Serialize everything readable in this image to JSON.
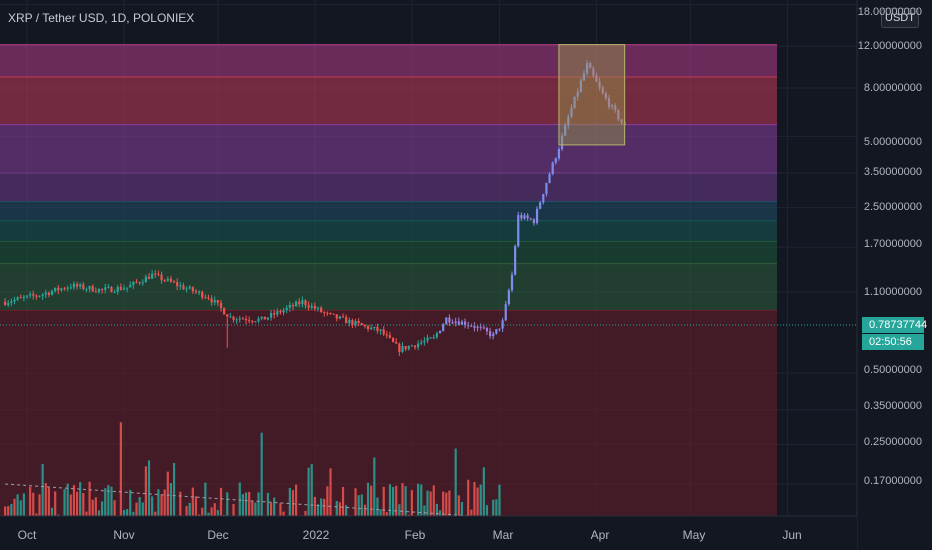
{
  "header": {
    "title": "XRP / Tether USD, 1D, POLONIEX"
  },
  "price_axis": {
    "unit_button": "USDT",
    "top_label": "18.00000000",
    "labels": [
      "12.00000000",
      "8.00000000",
      "5.00000000",
      "3.50000000",
      "2.50000000",
      "1.70000000",
      "1.10000000",
      "0.50000000",
      "0.35000000",
      "0.25000000",
      "0.17000000"
    ],
    "current_price": "0.78737744",
    "countdown": "02:50:56"
  },
  "time_axis": {
    "labels": [
      "Oct",
      "Nov",
      "Dec",
      "2022",
      "Feb",
      "Mar",
      "Apr",
      "May",
      "Jun"
    ]
  },
  "colors": {
    "up": "#26a69a",
    "down": "#ef5350",
    "background": "#131722",
    "price_tag": "#26a69a"
  },
  "chart_data": {
    "type": "candlestick",
    "title": "XRP / Tether USD, 1D, POLONIEX",
    "y_scale": "log",
    "ylim": [
      0.12,
      18.0
    ],
    "x_range": [
      "2021-09-24",
      "2022-06-20"
    ],
    "x_ticks": [
      "Oct",
      "Nov",
      "Dec",
      "2022",
      "Feb",
      "Mar",
      "Apr",
      "May",
      "Jun"
    ],
    "y_ticks": [
      18,
      12,
      8,
      5,
      3.5,
      2.5,
      1.7,
      1.1,
      0.5,
      0.35,
      0.25,
      0.17
    ],
    "last_price": 0.78737744,
    "zones": [
      {
        "from": 8.9,
        "to": 12.2,
        "color": "#b23c8a"
      },
      {
        "from": 5.6,
        "to": 8.9,
        "color": "#c23a5a"
      },
      {
        "from": 3.5,
        "to": 5.6,
        "color": "#8a3fa0"
      },
      {
        "from": 2.65,
        "to": 3.5,
        "color": "#6e3d8a"
      },
      {
        "from": 2.2,
        "to": 2.65,
        "color": "#1f4f66"
      },
      {
        "from": 1.8,
        "to": 2.2,
        "color": "#175a55"
      },
      {
        "from": 1.45,
        "to": 1.8,
        "color": "#1e5a3c"
      },
      {
        "from": 0.92,
        "to": 1.45,
        "color": "#2f5e3e"
      },
      {
        "from": 0.12,
        "to": 0.92,
        "color": "#6b1f2a"
      }
    ],
    "highlight_box": {
      "x_from": "2022-03-20",
      "x_to": "2022-04-10",
      "y_from": 4.6,
      "y_to": 12.2
    },
    "volume_trend": {
      "from": [
        "2021-09-24",
        0.17
      ],
      "to": [
        "2022-04-20",
        0.11
      ]
    },
    "price_path": [
      [
        "2021-09-24",
        1.0
      ],
      [
        "2021-10-05",
        1.07
      ],
      [
        "2021-10-15",
        1.17
      ],
      [
        "2021-10-25",
        1.12
      ],
      [
        "2021-11-02",
        1.15
      ],
      [
        "2021-11-10",
        1.3
      ],
      [
        "2021-11-20",
        1.15
      ],
      [
        "2021-11-28",
        1.05
      ],
      [
        "2021-12-05",
        0.86
      ],
      [
        "2021-12-15",
        0.84
      ],
      [
        "2021-12-28",
        1.0
      ],
      [
        "2022-01-05",
        0.88
      ],
      [
        "2022-01-15",
        0.8
      ],
      [
        "2022-01-22",
        0.75
      ],
      [
        "2022-01-28",
        0.63
      ],
      [
        "2022-02-08",
        0.7
      ],
      [
        "2022-02-12",
        0.85
      ],
      [
        "2022-02-20",
        0.8
      ],
      [
        "2022-02-27",
        0.72
      ],
      [
        "2022-03-02",
        0.82
      ],
      [
        "2022-03-05",
        1.3
      ],
      [
        "2022-03-07",
        2.3
      ],
      [
        "2022-03-12",
        2.2
      ],
      [
        "2022-03-16",
        3.2
      ],
      [
        "2022-03-20",
        4.5
      ],
      [
        "2022-03-23",
        6.0
      ],
      [
        "2022-03-27",
        8.5
      ],
      [
        "2022-03-29",
        10.0
      ],
      [
        "2022-04-03",
        7.5
      ],
      [
        "2022-04-10",
        5.5
      ]
    ],
    "volume_values": [
      [
        "2021-10-31",
        0.31
      ],
      [
        "2021-12-15",
        0.28
      ],
      [
        "2022-01-20",
        0.22
      ],
      [
        "2022-02-15",
        0.24
      ],
      [
        "2022-02-24",
        0.2
      ],
      [
        "2022-03-08",
        0.19
      ]
    ]
  }
}
